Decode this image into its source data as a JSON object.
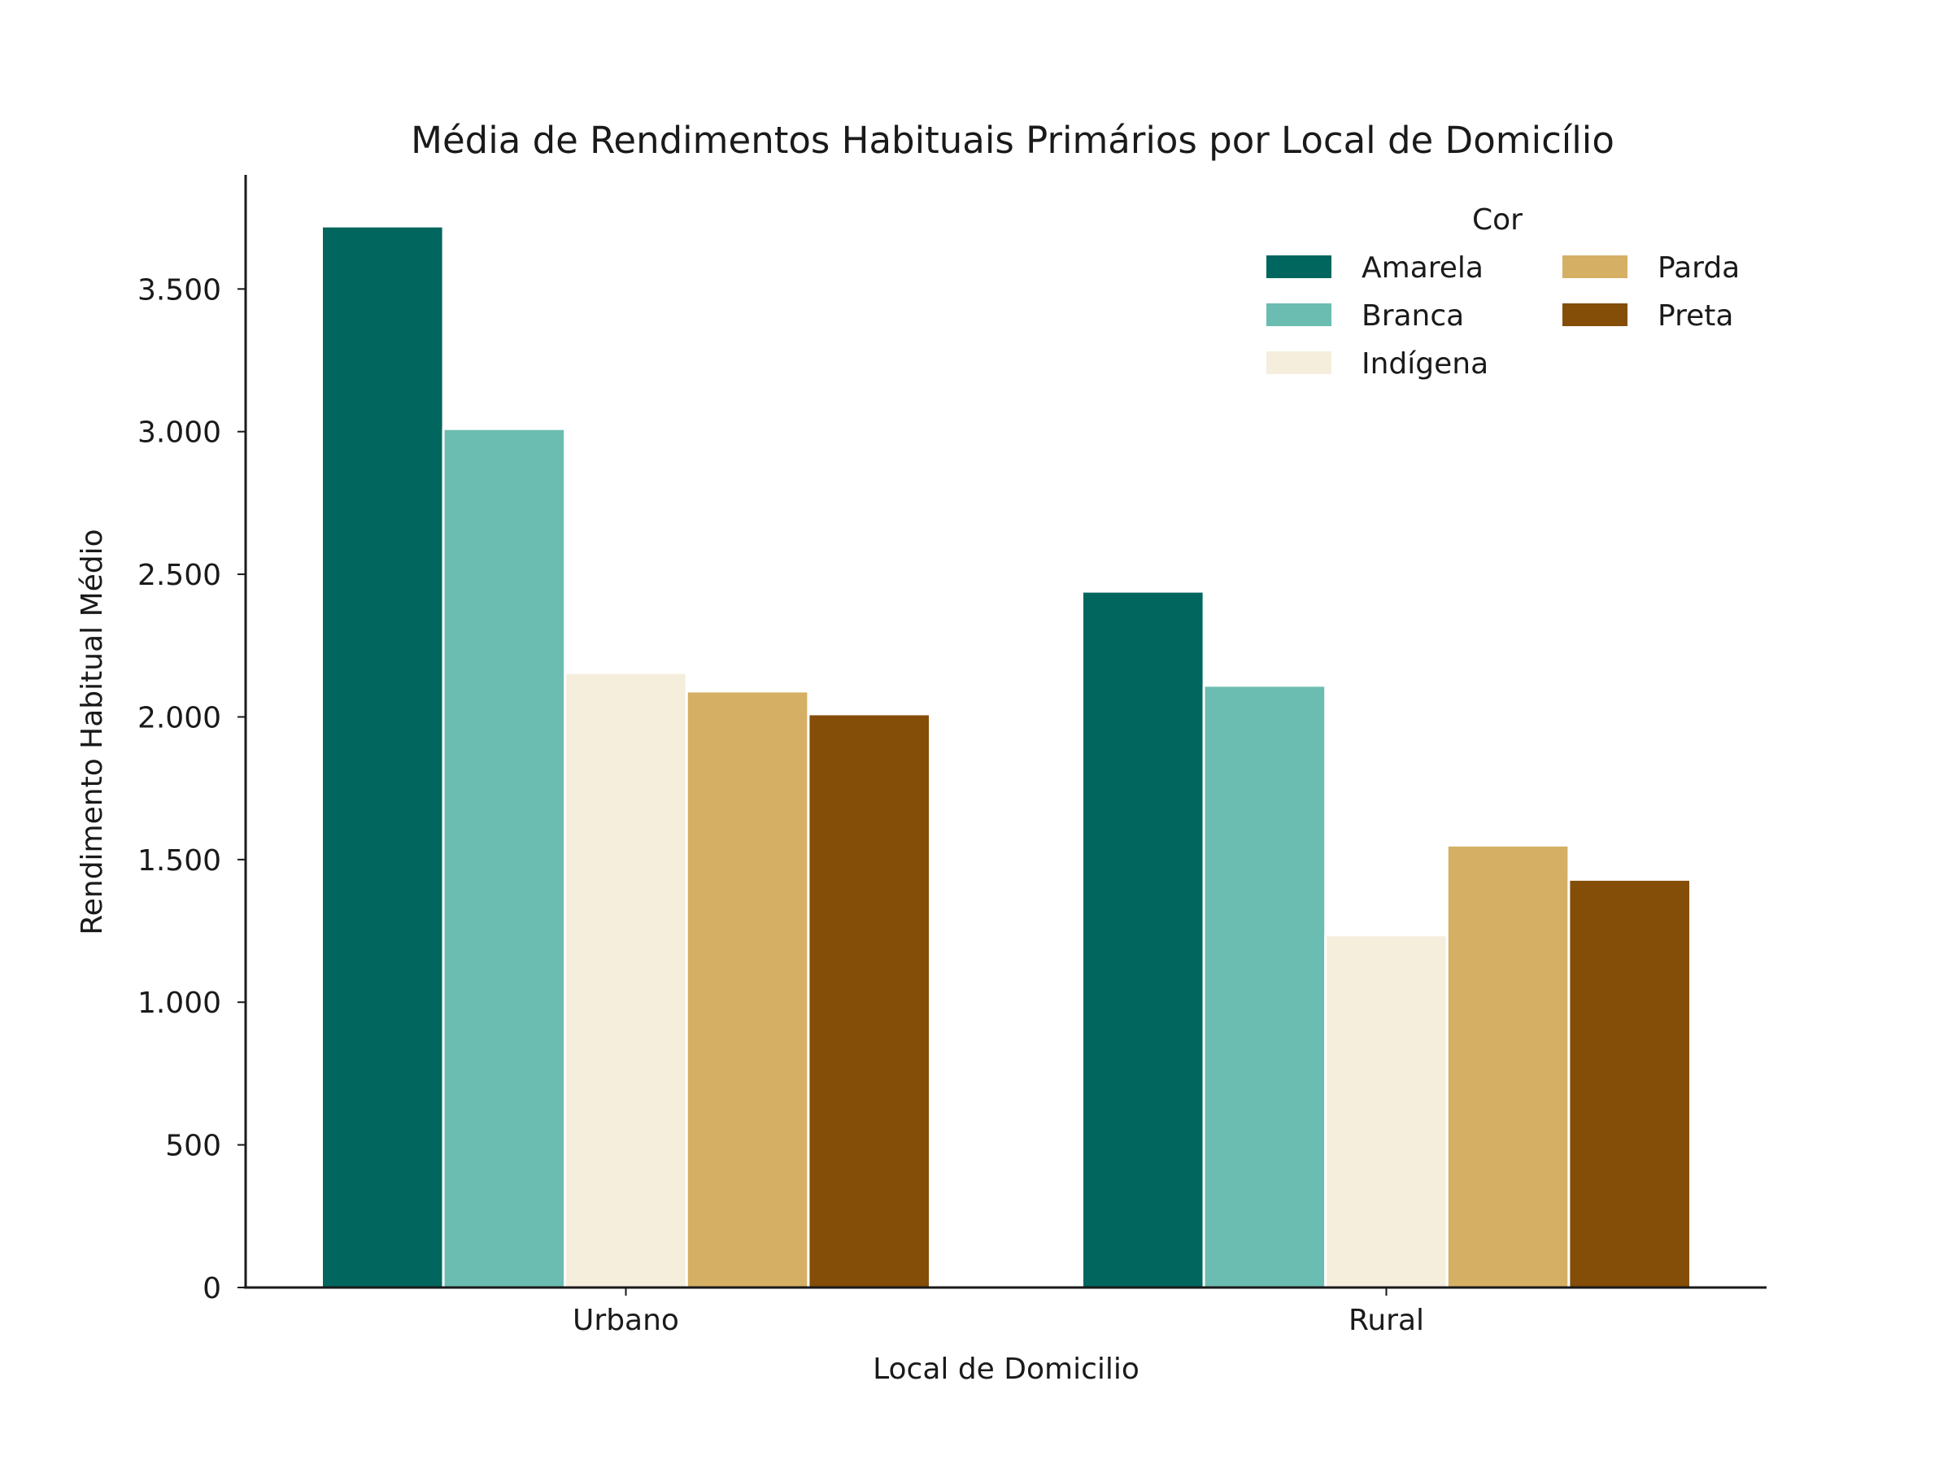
{
  "chart_data": {
    "type": "bar",
    "title": "Média de Rendimentos Habituais Primários por Local de Domicílio",
    "xlabel": "Local de Domicilio",
    "ylabel": "Rendimento Habitual Médio",
    "categories": [
      "Urbano",
      "Rural"
    ],
    "series": [
      {
        "name": "Amarela",
        "color": "#01665e",
        "values": [
          3720,
          2440
        ]
      },
      {
        "name": "Branca",
        "color": "#6bbcb1",
        "values": [
          3010,
          2110
        ]
      },
      {
        "name": "Indígena",
        "color": "#f5eedd",
        "values": [
          2155,
          1235
        ]
      },
      {
        "name": "Parda",
        "color": "#d5af64",
        "values": [
          2090,
          1550
        ]
      },
      {
        "name": "Preta",
        "color": "#844d08",
        "values": [
          2010,
          1430
        ]
      }
    ],
    "ylim": [
      0,
      3900
    ],
    "yticks": [
      {
        "value": 0,
        "label": "0"
      },
      {
        "value": 500,
        "label": "500"
      },
      {
        "value": 1000,
        "label": "1.000"
      },
      {
        "value": 1500,
        "label": "1.500"
      },
      {
        "value": 2000,
        "label": "2.000"
      },
      {
        "value": 2500,
        "label": "2.500"
      },
      {
        "value": 3000,
        "label": "3.000"
      },
      {
        "value": 3500,
        "label": "3.500"
      }
    ],
    "legend": {
      "title": "Cor",
      "placement": "top-right",
      "columns": 2
    },
    "grid": false
  }
}
